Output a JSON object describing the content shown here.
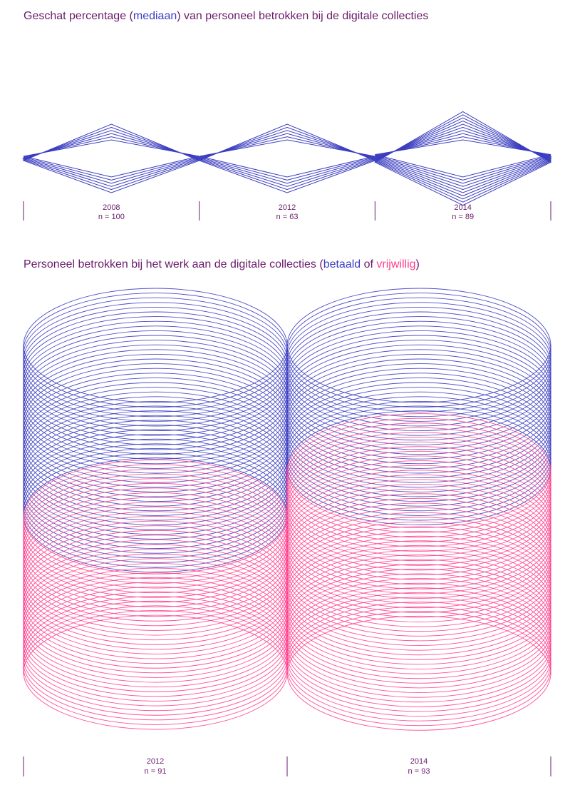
{
  "colors": {
    "blue": "#3b3dc0",
    "pink": "#ff3d8c",
    "text": "#6a1b6a"
  },
  "chart_data": [
    {
      "type": "other",
      "title_prefix": "Geschat percentage (",
      "title_highlight": "mediaan",
      "title_suffix": ") van personeel betrokken bij de digitale collecties",
      "categories": [
        "2008",
        "2012",
        "2014"
      ],
      "n_labels": [
        "n = 100",
        "n = 63",
        "n = 89"
      ],
      "series": [
        {
          "name": "mediaan",
          "color": "#3b3dc0",
          "values": [
            6,
            6,
            10
          ]
        }
      ]
    },
    {
      "type": "other",
      "title_prefix": "Personeel betrokken bij het werk aan de digitale collecties (",
      "title_highlight1": "betaald",
      "title_mid": " of ",
      "title_highlight2": "vrijwillig",
      "title_suffix": ")",
      "categories": [
        "2012",
        "2014"
      ],
      "n_labels": [
        "n = 91",
        "n = 93"
      ],
      "series": [
        {
          "name": "betaald",
          "color": "#3b3dc0",
          "values": [
            52,
            38
          ]
        },
        {
          "name": "vrijwillig",
          "color": "#ff3d8c",
          "values": [
            48,
            62
          ]
        }
      ]
    }
  ]
}
